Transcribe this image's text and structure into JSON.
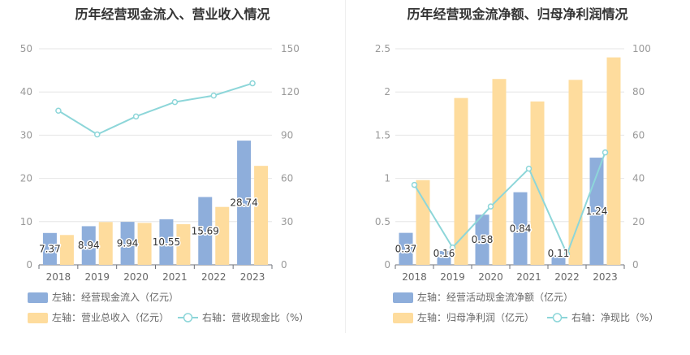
{
  "chart_data": [
    {
      "type": "bar",
      "title": "历年经营现金流入、营业收入情况",
      "categories": [
        "2018",
        "2019",
        "2020",
        "2021",
        "2022",
        "2023"
      ],
      "left_axis": {
        "min": 0,
        "max": 50,
        "ticks": [
          "0",
          "10",
          "20",
          "30",
          "40",
          "50"
        ]
      },
      "right_axis": {
        "min": 0,
        "max": 150,
        "ticks": [
          "0",
          "30",
          "60",
          "90",
          "120",
          "150"
        ]
      },
      "series": [
        {
          "name": "左轴：经营现金流入（亿元）",
          "type": "bar",
          "axis": "left",
          "color": "#8eaedb",
          "values": [
            7.37,
            8.94,
            9.94,
            10.55,
            15.69,
            28.74
          ],
          "labels": [
            "7.37",
            "8.94",
            "9.94",
            "10.55",
            "15.69",
            "28.74"
          ]
        },
        {
          "name": "左轴：营业总收入（亿元）",
          "type": "bar",
          "axis": "left",
          "color": "#fedc9d",
          "values": [
            6.9,
            9.9,
            9.7,
            9.4,
            13.4,
            22.9
          ]
        },
        {
          "name": "右轴：营收现金比（%）",
          "type": "line",
          "axis": "right",
          "color": "#8dd6d9",
          "values": [
            107,
            90.5,
            103,
            113,
            117.5,
            126
          ]
        }
      ],
      "grid": true,
      "legend_position": "bottom"
    },
    {
      "type": "bar",
      "title": "历年经营现金流净额、归母净利润情况",
      "categories": [
        "2018",
        "2019",
        "2020",
        "2021",
        "2022",
        "2023"
      ],
      "left_axis": {
        "min": 0,
        "max": 2.5,
        "ticks": [
          "0",
          "0.5",
          "1",
          "1.5",
          "2",
          "2.5"
        ]
      },
      "right_axis": {
        "min": 0,
        "max": 100,
        "ticks": [
          "0",
          "20",
          "40",
          "60",
          "80",
          "100"
        ]
      },
      "series": [
        {
          "name": "左轴：经营活动现金流净额（亿元）",
          "type": "bar",
          "axis": "left",
          "color": "#8eaedb",
          "values": [
            0.37,
            0.16,
            0.58,
            0.84,
            0.11,
            1.24
          ],
          "labels": [
            "0.37",
            "0.16",
            "0.58",
            "0.84",
            "0.11",
            "1.24"
          ]
        },
        {
          "name": "左轴：归母净利润（亿元）",
          "type": "bar",
          "axis": "left",
          "color": "#fedc9d",
          "values": [
            0.98,
            1.93,
            2.15,
            1.89,
            2.14,
            2.4
          ]
        },
        {
          "name": "右轴：净现比（%）",
          "type": "line",
          "axis": "right",
          "color": "#8dd6d9",
          "values": [
            37,
            8,
            27,
            44.5,
            5,
            52
          ]
        }
      ],
      "grid": true,
      "legend_position": "bottom"
    }
  ]
}
